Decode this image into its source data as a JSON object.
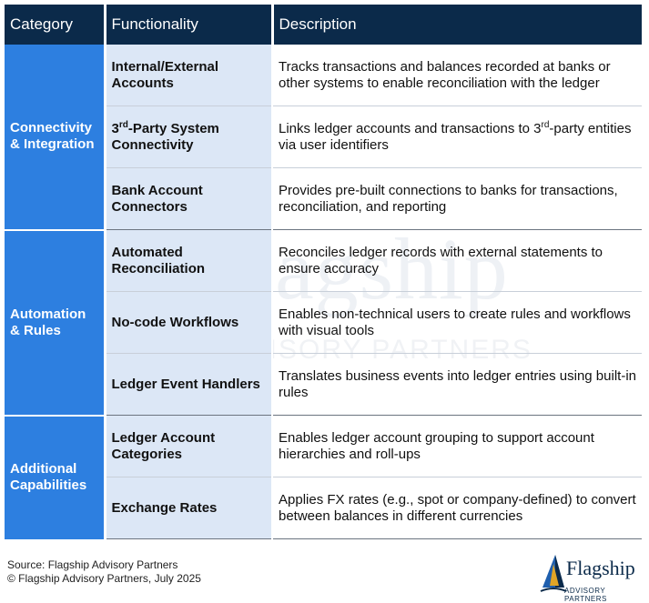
{
  "headers": {
    "category": "Category",
    "functionality": "Functionality",
    "description": "Description"
  },
  "groups": [
    {
      "category": "Connectivity & Integration",
      "rows": [
        {
          "functionality": "Internal/External Accounts",
          "description": "Tracks transactions and balances recorded at banks or other systems to enable reconciliation with the ledger"
        },
        {
          "functionality_pre": "3",
          "functionality_sup": "rd",
          "functionality_post": "-Party System Connectivity",
          "description_pre": "Links ledger accounts and transactions to 3",
          "description_sup": "rd",
          "description_post": "-party entities via user identifiers"
        },
        {
          "functionality": "Bank Account Connectors",
          "description": "Provides pre-built connections to banks for transactions, reconciliation, and reporting"
        }
      ]
    },
    {
      "category": "Automation & Rules",
      "rows": [
        {
          "functionality": "Automated Reconciliation",
          "description": "Reconciles ledger records with external statements to ensure accuracy"
        },
        {
          "functionality": "No-code Workflows",
          "description": "Enables non-technical users to create rules and workflows with visual tools"
        },
        {
          "functionality": "Ledger Event Handlers",
          "description": "Translates business events into ledger entries using built-in rules"
        }
      ]
    },
    {
      "category": "Additional Capabilities",
      "rows": [
        {
          "functionality": "Ledger Account Categories",
          "description": "Enables ledger account grouping to support account hierarchies and roll-ups"
        },
        {
          "functionality": "Exchange Rates",
          "description": "Applies FX rates (e.g., spot or company-defined) to convert between balances in different currencies"
        }
      ]
    }
  ],
  "footer": {
    "source": "Source: Flagship Advisory Partners",
    "copyright": "© Flagship Advisory Partners, July 2025"
  },
  "logo": {
    "word": "Flagship",
    "sub": "ADVISORY PARTNERS"
  },
  "watermark": {
    "word": "Flagship",
    "sub": "ADVISORY PARTNERS"
  },
  "colors": {
    "header_bg": "#0b2a4a",
    "category_bg": "#2d7fe0",
    "functionality_bg": "#dce7f6"
  }
}
